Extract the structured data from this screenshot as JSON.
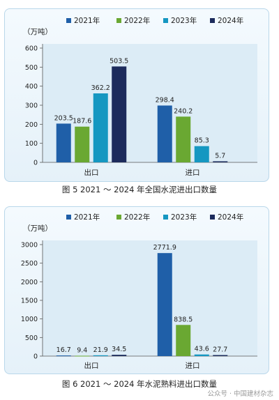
{
  "chart_data": [
    {
      "type": "bar",
      "title": "",
      "caption": "图 5  2021 ～ 2024 年全国水泥进出口数量",
      "unit": "（万吨）",
      "categories": [
        "出口",
        "进口"
      ],
      "series": [
        {
          "name": "2021年",
          "color": "#1f5fa8",
          "values": [
            203.5,
            298.4
          ]
        },
        {
          "name": "2022年",
          "color": "#6aa832",
          "values": [
            187.6,
            240.2
          ]
        },
        {
          "name": "2023年",
          "color": "#1597c1",
          "values": [
            362.2,
            85.3
          ]
        },
        {
          "name": "2024年",
          "color": "#1c2b5c",
          "values": [
            503.5,
            5.7
          ]
        }
      ],
      "ylim": [
        0,
        600
      ],
      "yticks": [
        0,
        100,
        200,
        300,
        400,
        500,
        600
      ],
      "legend_position": "top"
    },
    {
      "type": "bar",
      "title": "",
      "caption": "图 6  2021 ～ 2024 年水泥熟料进出口数量",
      "unit": "（万吨）",
      "categories": [
        "出口",
        "进口"
      ],
      "series": [
        {
          "name": "2021年",
          "color": "#1f5fa8",
          "values": [
            16.7,
            2771.9
          ]
        },
        {
          "name": "2022年",
          "color": "#6aa832",
          "values": [
            9.4,
            838.5
          ]
        },
        {
          "name": "2023年",
          "color": "#1597c1",
          "values": [
            21.9,
            43.6
          ]
        },
        {
          "name": "2024年",
          "color": "#1c2b5c",
          "values": [
            34.5,
            27.7
          ]
        }
      ],
      "ylim": [
        0,
        3000
      ],
      "yticks": [
        0,
        500,
        1000,
        1500,
        2000,
        2500,
        3000
      ],
      "legend_position": "top"
    }
  ],
  "watermark": "公众号 · 中国建材杂志"
}
